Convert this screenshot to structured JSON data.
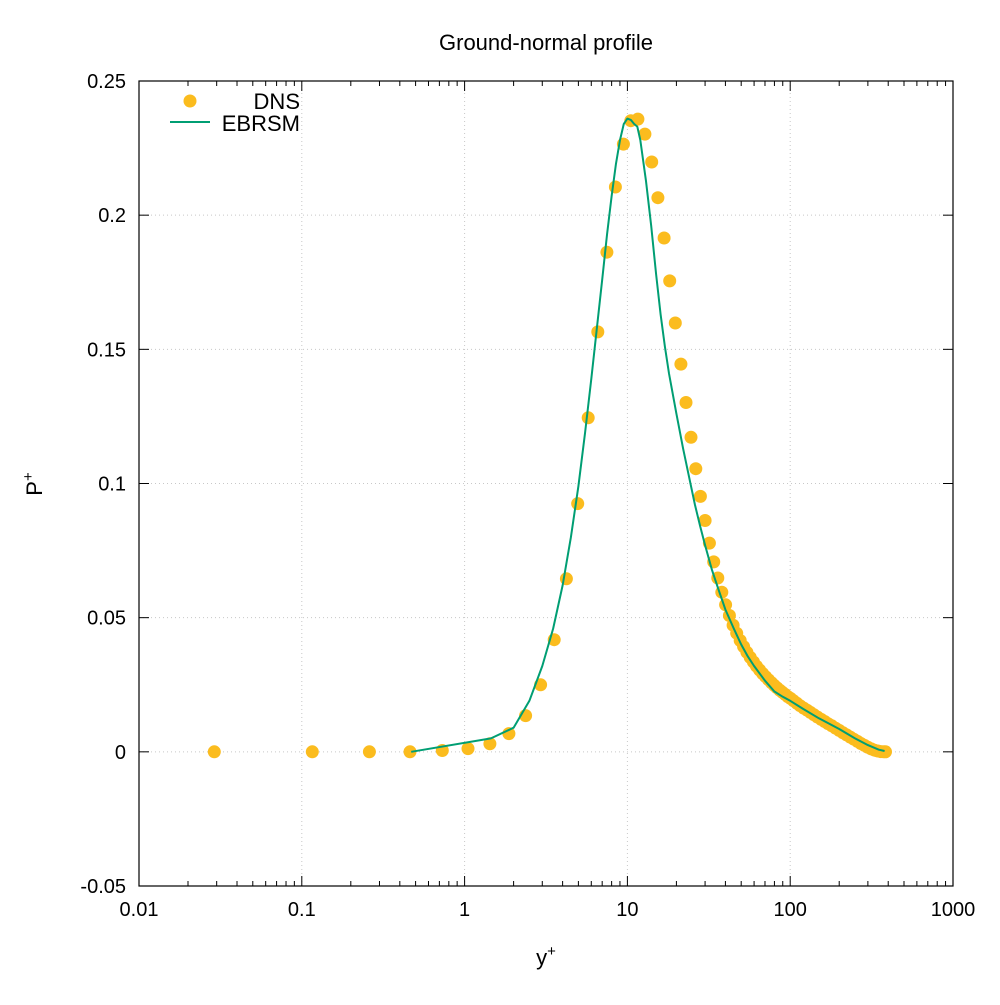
{
  "chart_data": {
    "type": "line",
    "title": "Ground-normal profile",
    "xlabel": "y",
    "xlabel_sup": "+",
    "ylabel": "P",
    "ylabel_sup": "+",
    "xscale": "log",
    "xlim": [
      0.01,
      1000
    ],
    "ylim": [
      -0.05,
      0.25
    ],
    "grid": true,
    "legend_position": "top-left",
    "x_ticks": [
      {
        "value": 0.01,
        "label": "0.01"
      },
      {
        "value": 0.1,
        "label": "0.1"
      },
      {
        "value": 1,
        "label": "1"
      },
      {
        "value": 10,
        "label": "10"
      },
      {
        "value": 100,
        "label": "100"
      },
      {
        "value": 1000,
        "label": "1000"
      }
    ],
    "y_ticks": [
      {
        "value": -0.05,
        "label": "-0.05"
      },
      {
        "value": 0,
        "label": "0"
      },
      {
        "value": 0.05,
        "label": "0.05"
      },
      {
        "value": 0.1,
        "label": "0.1"
      },
      {
        "value": 0.15,
        "label": "0.15"
      },
      {
        "value": 0.2,
        "label": "0.2"
      },
      {
        "value": 0.25,
        "label": "0.25"
      }
    ],
    "series": [
      {
        "name": "DNS",
        "kind": "scatter",
        "color": "#fbbc1e",
        "x": [
          0.029,
          0.116,
          0.26,
          0.462,
          0.73,
          1.05,
          1.43,
          1.87,
          2.37,
          2.93,
          3.55,
          4.22,
          4.95,
          5.74,
          6.58,
          7.48,
          8.44,
          9.45,
          10.5,
          11.6,
          12.8,
          14.1,
          15.4,
          16.8,
          18.2,
          19.7,
          21.3,
          22.9,
          24.6,
          26.3,
          28.1,
          30.0,
          31.9,
          33.9,
          35.9,
          38.0,
          40.1,
          42.3,
          44.6,
          46.9,
          49.3,
          51.7,
          54.2,
          56.8,
          59.4,
          62.1,
          64.9,
          67.7,
          70.6,
          73.6,
          76.6,
          79.7,
          82.9,
          86.2,
          89.6,
          93.1,
          96.7,
          100.4,
          105,
          110,
          115,
          121,
          127,
          133,
          140,
          147,
          155,
          163,
          171,
          180,
          190,
          200,
          211,
          222,
          234,
          246,
          259,
          272,
          286,
          300,
          315,
          330,
          345,
          360,
          375,
          385
        ],
        "y": [
          0.0,
          0.0,
          0.0,
          0.0,
          0.0005,
          0.0012,
          0.003,
          0.0068,
          0.0135,
          0.025,
          0.0418,
          0.0645,
          0.0925,
          0.1245,
          0.1565,
          0.1862,
          0.2105,
          0.2265,
          0.2352,
          0.2358,
          0.2302,
          0.2198,
          0.2065,
          0.1915,
          0.1755,
          0.1598,
          0.1445,
          0.1302,
          0.1172,
          0.1055,
          0.0952,
          0.0862,
          0.0778,
          0.0708,
          0.0648,
          0.0595,
          0.0548,
          0.0508,
          0.0472,
          0.0442,
          0.0415,
          0.0392,
          0.0371,
          0.0352,
          0.0335,
          0.0319,
          0.0305,
          0.0292,
          0.028,
          0.0269,
          0.0258,
          0.0248,
          0.0239,
          0.023,
          0.0222,
          0.0214,
          0.0206,
          0.0199,
          0.019,
          0.0181,
          0.0172,
          0.0163,
          0.0155,
          0.0147,
          0.0138,
          0.013,
          0.0121,
          0.0113,
          0.0105,
          0.0097,
          0.0088,
          0.008,
          0.0071,
          0.0063,
          0.0055,
          0.0047,
          0.0039,
          0.0031,
          0.0024,
          0.0017,
          0.0011,
          0.0006,
          0.0003,
          0.0001,
          0.0,
          0.0
        ]
      },
      {
        "name": "EBRSM",
        "kind": "line",
        "color": "#009e73",
        "x": [
          0.47,
          1.45,
          2.0,
          2.5,
          3.0,
          3.5,
          4.0,
          4.5,
          5.0,
          5.5,
          6.0,
          6.5,
          7.0,
          7.5,
          8.0,
          8.5,
          9.0,
          9.5,
          10.0,
          10.5,
          11.0,
          11.5,
          12.0,
          13.0,
          14.0,
          15.0,
          16.0,
          17.0,
          18.0,
          20.0,
          22.0,
          24.0,
          26.0,
          28.0,
          30.0,
          33.0,
          36.0,
          40.0,
          45.0,
          50.0,
          55.0,
          60.0,
          70.0,
          80.0,
          90.0,
          100.0,
          120.0,
          150.0,
          200.0,
          250.0,
          300.0,
          350.0,
          380.0
        ],
        "y": [
          0.0,
          0.005,
          0.009,
          0.019,
          0.032,
          0.046,
          0.062,
          0.08,
          0.099,
          0.119,
          0.139,
          0.158,
          0.176,
          0.193,
          0.207,
          0.219,
          0.228,
          0.234,
          0.236,
          0.2355,
          0.234,
          0.233,
          0.228,
          0.213,
          0.196,
          0.178,
          0.163,
          0.151,
          0.141,
          0.126,
          0.113,
          0.102,
          0.092,
          0.084,
          0.077,
          0.068,
          0.061,
          0.053,
          0.046,
          0.04,
          0.0355,
          0.032,
          0.0265,
          0.0225,
          0.0205,
          0.019,
          0.016,
          0.0125,
          0.0085,
          0.005,
          0.0025,
          0.0008,
          0.0003
        ]
      }
    ]
  }
}
